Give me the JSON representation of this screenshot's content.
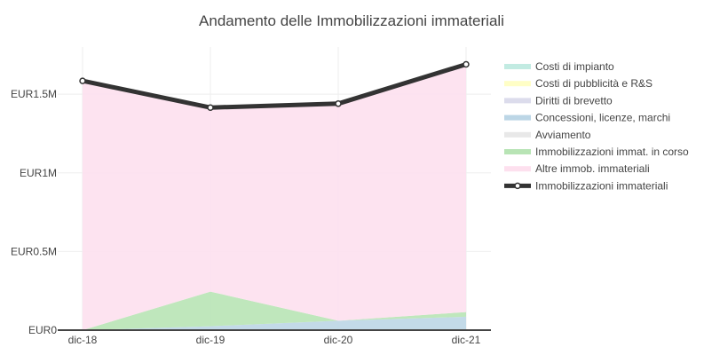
{
  "chart_data": {
    "type": "area",
    "title": "Andamento delle Immobilizzazioni immateriali",
    "xlabel": "",
    "ylabel": "",
    "categories": [
      "dic-18",
      "dic-19",
      "dic-20",
      "dic-21"
    ],
    "ylim": [
      0,
      1800000
    ],
    "yticks": [
      {
        "value": 0,
        "label": "EUR0"
      },
      {
        "value": 500000,
        "label": "EUR0.5M"
      },
      {
        "value": 1000000,
        "label": "EUR1M"
      },
      {
        "value": 1500000,
        "label": "EUR1.5M"
      }
    ],
    "grid": true,
    "legend_position": "right",
    "stacked": true,
    "series": [
      {
        "name": "Costi di impianto",
        "type": "area",
        "color": "#c2ebe2",
        "values": [
          0,
          0,
          0,
          0
        ]
      },
      {
        "name": "Costi di pubblicità e R&S",
        "type": "area",
        "color": "#fffec6",
        "values": [
          0,
          0,
          0,
          0
        ]
      },
      {
        "name": "Diritti di brevetto",
        "type": "area",
        "color": "#dcdcec",
        "values": [
          0,
          0,
          0,
          0
        ]
      },
      {
        "name": "Concessioni, licenze, marchi",
        "type": "area",
        "color": "#bcd6e6",
        "values": [
          0,
          25000,
          60000,
          85000
        ]
      },
      {
        "name": "Avviamento",
        "type": "area",
        "color": "#e8e8e8",
        "values": [
          0,
          0,
          0,
          0
        ]
      },
      {
        "name": "Immobilizzazioni immat. in corso",
        "type": "area",
        "color": "#b8e4b5",
        "values": [
          0,
          220000,
          0,
          30000
        ]
      },
      {
        "name": "Altre immob. immateriali",
        "type": "area",
        "color": "#fde0ee",
        "values": [
          1585000,
          1170000,
          1380000,
          1575000
        ]
      },
      {
        "name": "Immobilizzazioni immateriali",
        "type": "line",
        "color": "#333333",
        "values": [
          1585000,
          1415000,
          1440000,
          1690000
        ]
      }
    ]
  }
}
